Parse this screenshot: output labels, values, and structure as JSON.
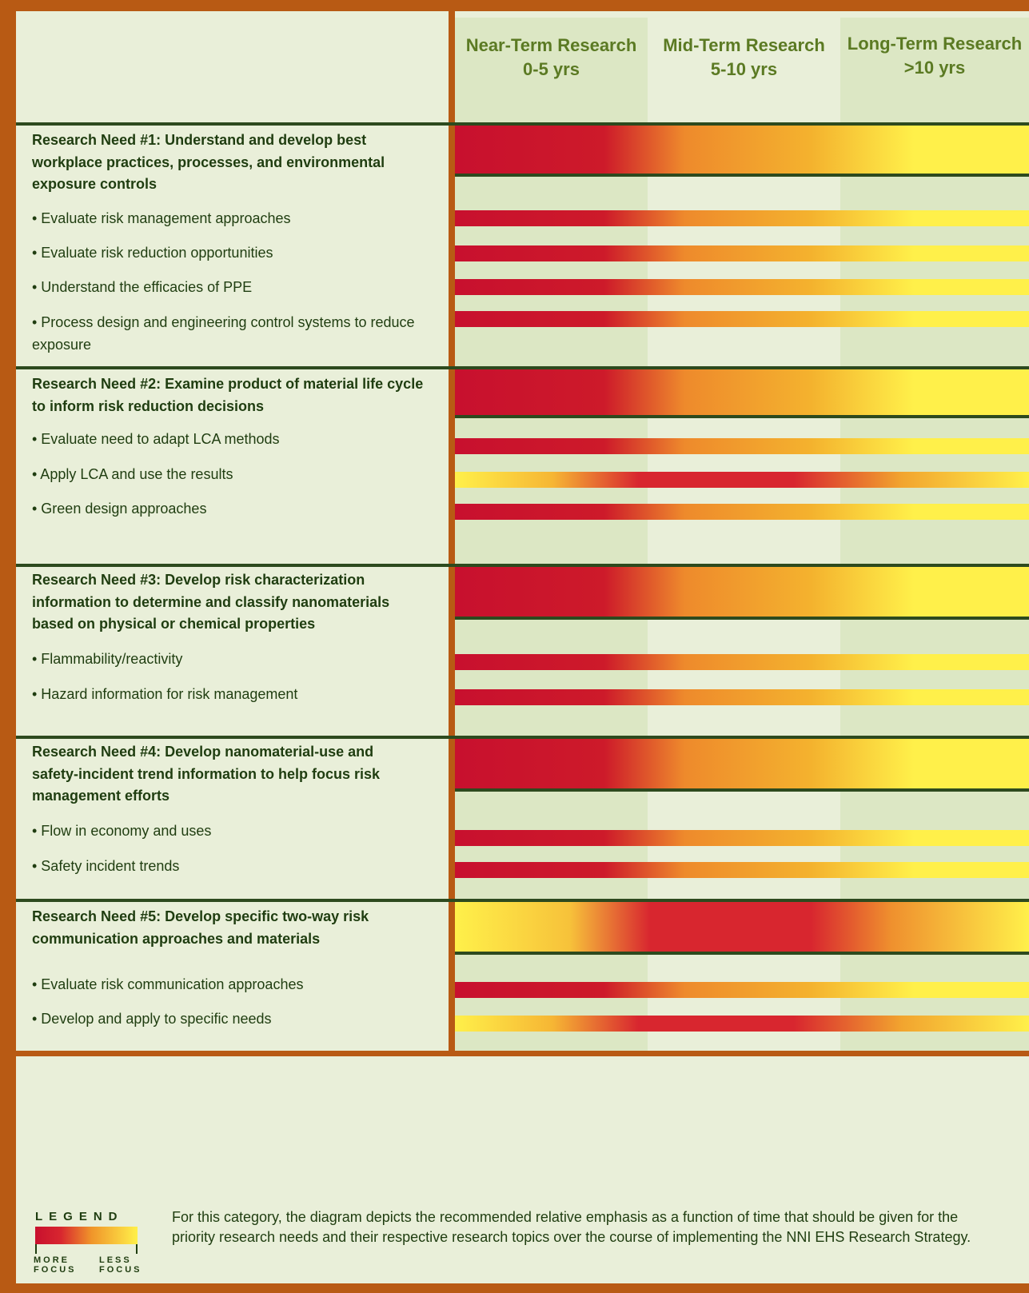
{
  "columns": [
    {
      "title": "Near-Term Research",
      "range": "0-5 yrs"
    },
    {
      "title": "Mid-Term Research",
      "range": "5-10 yrs"
    },
    {
      "title": "Long-Term Research",
      "range": ">10 yrs"
    }
  ],
  "needs": [
    {
      "title": "Research Need #1: Understand and develop best workplace practices, processes, and environmental exposure controls",
      "focus": "early",
      "topics": [
        {
          "label": "• Evaluate risk management approaches",
          "focus": "early"
        },
        {
          "label": "• Evaluate risk reduction opportunities",
          "focus": "early"
        },
        {
          "label": "• Understand the efficacies of PPE",
          "focus": "early"
        },
        {
          "label": "• Process design and engineering control systems to reduce exposure",
          "focus": "early"
        }
      ]
    },
    {
      "title": "Research Need #2: Examine product of material life cycle to inform risk reduction decisions",
      "focus": "early",
      "topics": [
        {
          "label": "• Evaluate need to adapt LCA methods",
          "focus": "early"
        },
        {
          "label": "• Apply LCA and use the results",
          "focus": "mid"
        },
        {
          "label": "• Green design approaches",
          "focus": "early"
        }
      ]
    },
    {
      "title": "Research Need #3: Develop risk characterization information to determine and classify nanomaterials based on physical or chemical properties",
      "focus": "early",
      "topics": [
        {
          "label": "• Flammability/reactivity",
          "focus": "early"
        },
        {
          "label": "• Hazard information for risk management",
          "focus": "early"
        }
      ]
    },
    {
      "title": "Research Need #4: Develop nanomaterial-use and safety-incident trend information to help focus risk management efforts",
      "focus": "early",
      "topics": [
        {
          "label": "• Flow in economy and uses",
          "focus": "early"
        },
        {
          "label": "• Safety incident trends",
          "focus": "early"
        }
      ]
    },
    {
      "title": "Research Need #5: Develop specific two-way risk communication approaches and materials",
      "focus": "mid",
      "topics": [
        {
          "label": "• Evaluate risk communication approaches",
          "focus": "early"
        },
        {
          "label": "• Develop and apply to specific needs",
          "focus": "mid"
        }
      ]
    }
  ],
  "legend": {
    "title": "LEGEND",
    "more": "MORE FOCUS",
    "less": "LESS FOCUS"
  },
  "note": "For this category, the diagram depicts the recommended relative emphasis as a function of time that should be given for the priority research needs and their respective research topics over the course of implementing the NNI EHS Research Strategy.",
  "colors": {
    "frame": "#b85a14",
    "divider": "#2d4a1e",
    "bg_light": "#e9efd9",
    "bg_band": "#dce7c4",
    "red": "#c8102e",
    "orange": "#f0952a",
    "yellow": "#fff04a"
  }
}
